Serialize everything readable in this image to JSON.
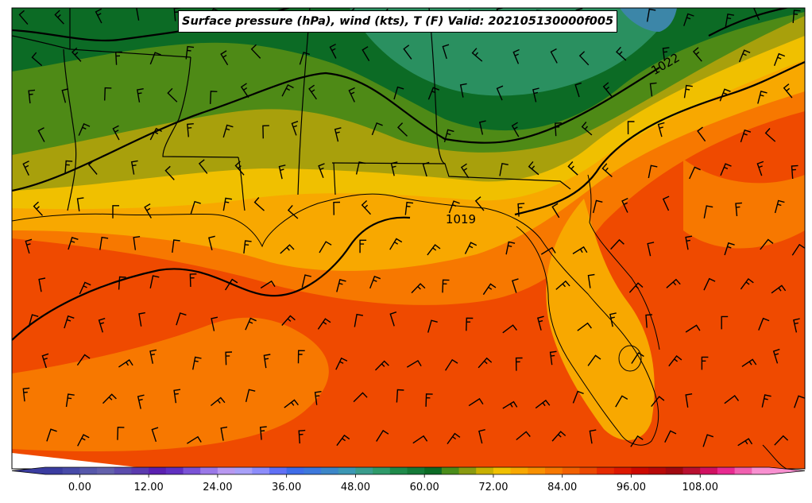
{
  "title": "Surface pressure (hPa), wind (kts), T (F) Valid: 202105130000f005",
  "isobar_labels": [
    {
      "text": "1019",
      "color": "#000000"
    },
    {
      "text": "1022",
      "color": "#000000"
    }
  ],
  "colorbar": {
    "min": -6,
    "max": 120,
    "step": 3,
    "extend": "both",
    "ticks": [
      "0.00",
      "12.00",
      "24.00",
      "36.00",
      "48.00",
      "60.00",
      "72.00",
      "84.00",
      "96.00",
      "108.00"
    ],
    "colors": [
      "#3a3ca0",
      "#474aa8",
      "#5657aa",
      "#6361ac",
      "#5b4cad",
      "#5a3aae",
      "#5a20b0",
      "#6030c0",
      "#7a52d6",
      "#9a78e8",
      "#b898f0",
      "#a8a0f8",
      "#8c8cfa",
      "#6070f5",
      "#3f6ce8",
      "#3d78dc",
      "#3c86c8",
      "#3c97b4",
      "#3a9c8c",
      "#2f9a6a",
      "#1f8a4a",
      "#157a38",
      "#0c6b25",
      "#4a8c1a",
      "#8a9a10",
      "#c8b000",
      "#f0c000",
      "#f8a800",
      "#f89000",
      "#f77800",
      "#f26000",
      "#ec4800",
      "#e62a00",
      "#dc1800",
      "#cc0800",
      "#b80808",
      "#a00810",
      "#b81030",
      "#d01060",
      "#e82a90",
      "#f060b0",
      "#f890d0"
    ]
  },
  "regions": [
    "Surface temperature shading",
    "MSLP isobars",
    "Wind barbs (kts)",
    "State borders",
    "Coastline"
  ]
}
